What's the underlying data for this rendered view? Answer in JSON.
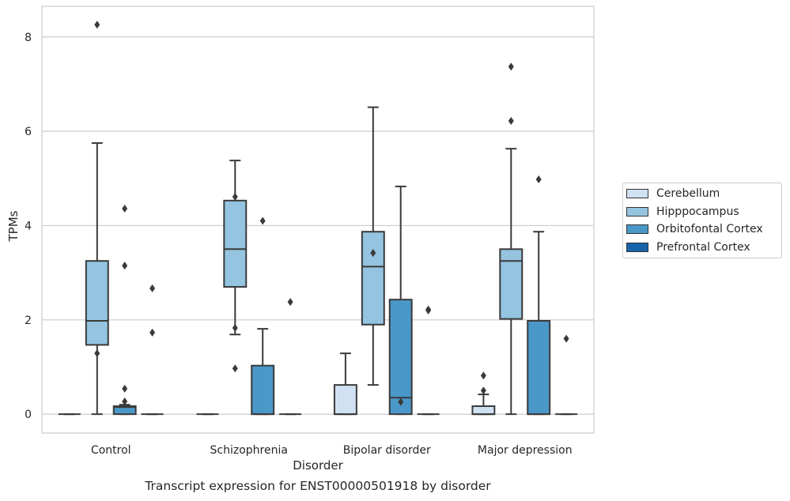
{
  "chart_data": {
    "type": "box",
    "title": "Transcript expression for ENST00000501918 by disorder",
    "xlabel": "Disorder",
    "ylabel": "TPMs",
    "ylim": [
      -0.4,
      8.65
    ],
    "yticks": [
      0,
      2,
      4,
      6,
      8
    ],
    "grid": true,
    "legend_position": "right-outside",
    "categories": [
      "Control",
      "Schizophrenia",
      "Bipolar disorder",
      "Major depression"
    ],
    "series": [
      {
        "name": "Cerebellum",
        "color": "#d0e1f2",
        "boxes": [
          {
            "q1": 0,
            "median": 0,
            "q3": 0,
            "whisker_low": 0,
            "whisker_high": 0,
            "outliers": []
          },
          {
            "q1": 0,
            "median": 0,
            "q3": 0,
            "whisker_low": 0,
            "whisker_high": 0,
            "outliers": []
          },
          {
            "q1": 0,
            "median": 0,
            "q3": 0.62,
            "whisker_low": 0,
            "whisker_high": 1.29,
            "outliers": []
          },
          {
            "q1": 0,
            "median": 0,
            "q3": 0.17,
            "whisker_low": 0,
            "whisker_high": 0.42,
            "outliers": [
              0.5,
              0.82
            ]
          }
        ]
      },
      {
        "name": "Hipppocampus",
        "color": "#94c4df",
        "boxes": [
          {
            "q1": 1.47,
            "median": 1.98,
            "q3": 3.25,
            "whisker_low": 0,
            "whisker_high": 5.75,
            "outliers": [
              1.29,
              8.26
            ]
          },
          {
            "q1": 2.7,
            "median": 3.5,
            "q3": 4.53,
            "whisker_low": 1.69,
            "whisker_high": 5.38,
            "outliers": [
              0.97,
              1.83,
              4.61
            ]
          },
          {
            "q1": 1.9,
            "median": 3.13,
            "q3": 3.87,
            "whisker_low": 0.62,
            "whisker_high": 6.51,
            "outliers": [
              3.42
            ]
          },
          {
            "q1": 2.02,
            "median": 3.25,
            "q3": 3.5,
            "whisker_low": 0,
            "whisker_high": 5.63,
            "outliers": [
              6.22,
              7.37
            ]
          }
        ]
      },
      {
        "name": "Orbitofontal Cortex",
        "color": "#4a98c9",
        "boxes": [
          {
            "q1": 0,
            "median": 0.15,
            "q3": 0.17,
            "whisker_low": 0,
            "whisker_high": 0.2,
            "outliers": [
              0.27,
              0.54,
              3.15,
              4.36
            ]
          },
          {
            "q1": 0,
            "median": 0,
            "q3": 1.03,
            "whisker_low": 0,
            "whisker_high": 1.81,
            "outliers": [
              4.1
            ]
          },
          {
            "q1": 0,
            "median": 0.35,
            "q3": 2.43,
            "whisker_low": 0,
            "whisker_high": 4.83,
            "outliers": [
              0.26
            ]
          },
          {
            "q1": 0,
            "median": 0,
            "q3": 1.98,
            "whisker_low": 0,
            "whisker_high": 3.87,
            "outliers": [
              4.98
            ]
          }
        ]
      },
      {
        "name": "Prefrontal Cortex",
        "color": "#1764ab",
        "boxes": [
          {
            "q1": 0,
            "median": 0,
            "q3": 0,
            "whisker_low": 0,
            "whisker_high": 0,
            "outliers": [
              1.73,
              2.67
            ]
          },
          {
            "q1": 0,
            "median": 0,
            "q3": 0,
            "whisker_low": 0,
            "whisker_high": 0,
            "outliers": [
              2.38
            ]
          },
          {
            "q1": 0,
            "median": 0,
            "q3": 0,
            "whisker_low": 0,
            "whisker_high": 0,
            "outliers": [
              2.2,
              2.22
            ]
          },
          {
            "q1": 0,
            "median": 0,
            "q3": 0,
            "whisker_low": 0,
            "whisker_high": 0,
            "outliers": [
              1.6
            ]
          }
        ]
      }
    ]
  }
}
